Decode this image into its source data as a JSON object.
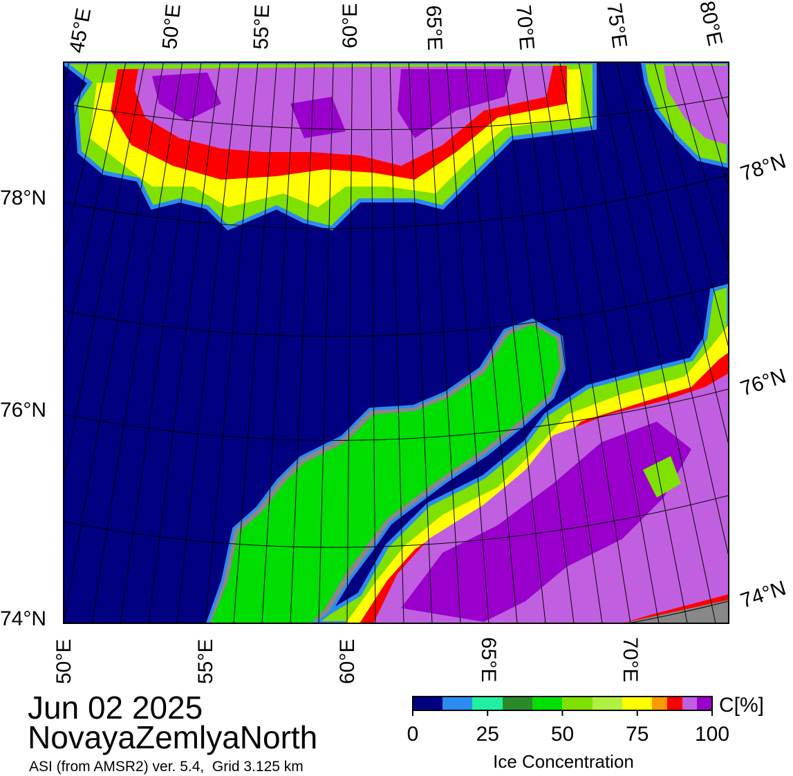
{
  "map": {
    "title": "Jun 02 2025",
    "region": "NovayaZemlyaNorth",
    "subtitle": "ASI (from AMSR2) ver. 5.4,  Grid 3.125 km",
    "top_labels": [
      "45°E",
      "50°E",
      "55°E",
      "60°E",
      "65°E",
      "70°E",
      "75°E",
      "80°E"
    ],
    "bottom_labels": [
      "50°E",
      "55°E",
      "60°E",
      "65°E",
      "70°E"
    ],
    "left_labels": [
      "78°N",
      "76°N",
      "74°N"
    ],
    "right_labels": [
      "78°N",
      "76°N",
      "74°N"
    ]
  },
  "colorbar": {
    "range": [
      0,
      100
    ],
    "ticks": [
      0,
      25,
      50,
      75,
      100
    ],
    "unit": "C[%]",
    "label": "Ice Concentration"
  }
}
